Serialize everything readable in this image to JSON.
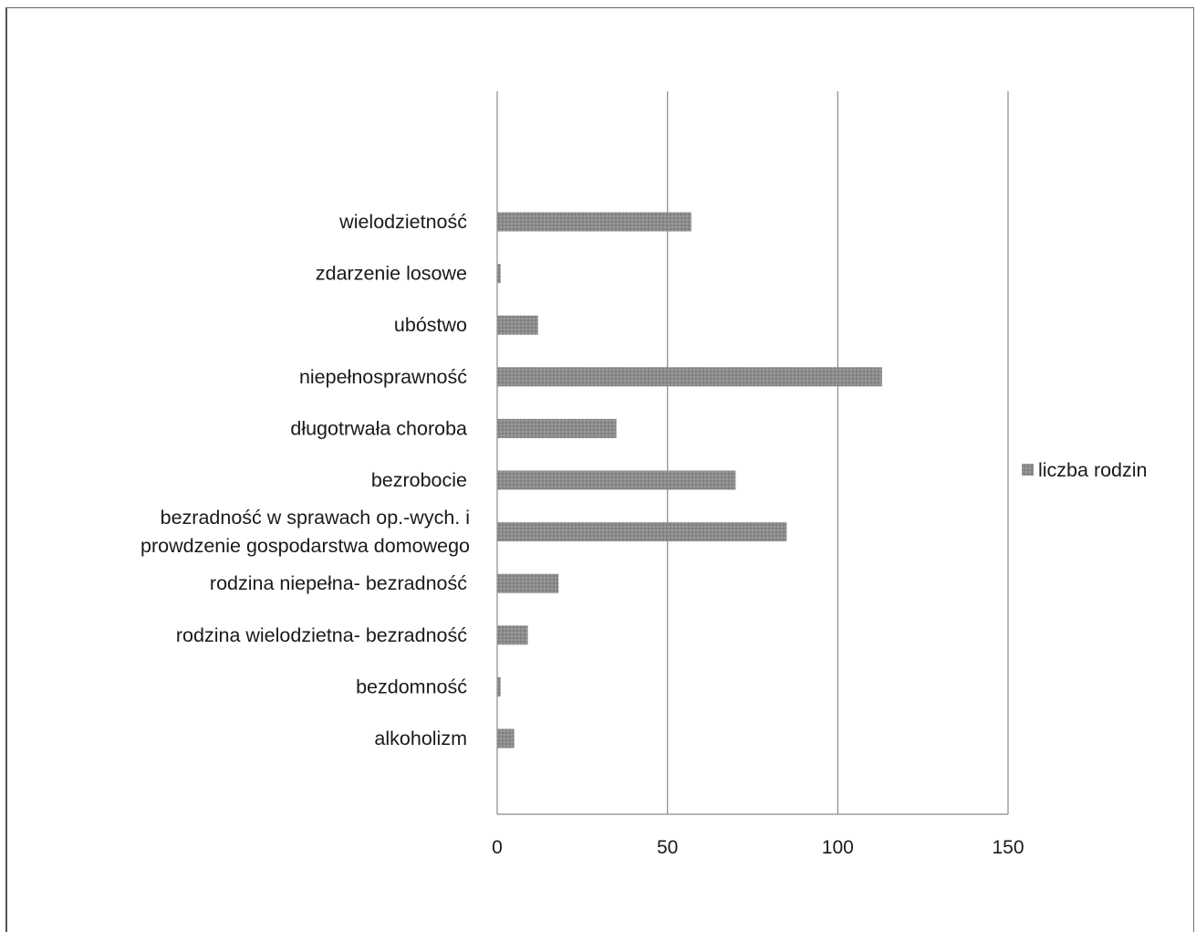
{
  "chart_data": {
    "type": "bar",
    "orientation": "horizontal",
    "categories": [
      "wielodzietność",
      "zdarzenie losowe",
      "ubóstwo",
      "niepełnosprawność",
      "długotrwała choroba",
      "bezrobocie",
      [
        "bezradność w sprawach op.-wych. i",
        "prowdzenie gospodarstwa domowego"
      ],
      "rodzina niepełna- bezradność",
      "rodzina wielodzietna- bezradność",
      "bezdomność",
      "alkoholizm"
    ],
    "series": [
      {
        "name": "liczba rodzin",
        "values": [
          57,
          1,
          12,
          113,
          35,
          70,
          85,
          18,
          9,
          1,
          5
        ],
        "color": "#8c8c8c"
      }
    ],
    "xlim": [
      0,
      150
    ],
    "xticks": [
      0,
      50,
      100,
      150
    ],
    "xtick_labels": [
      "0",
      "50",
      "100",
      "150"
    ],
    "grid": "vertical",
    "legend": "right"
  }
}
